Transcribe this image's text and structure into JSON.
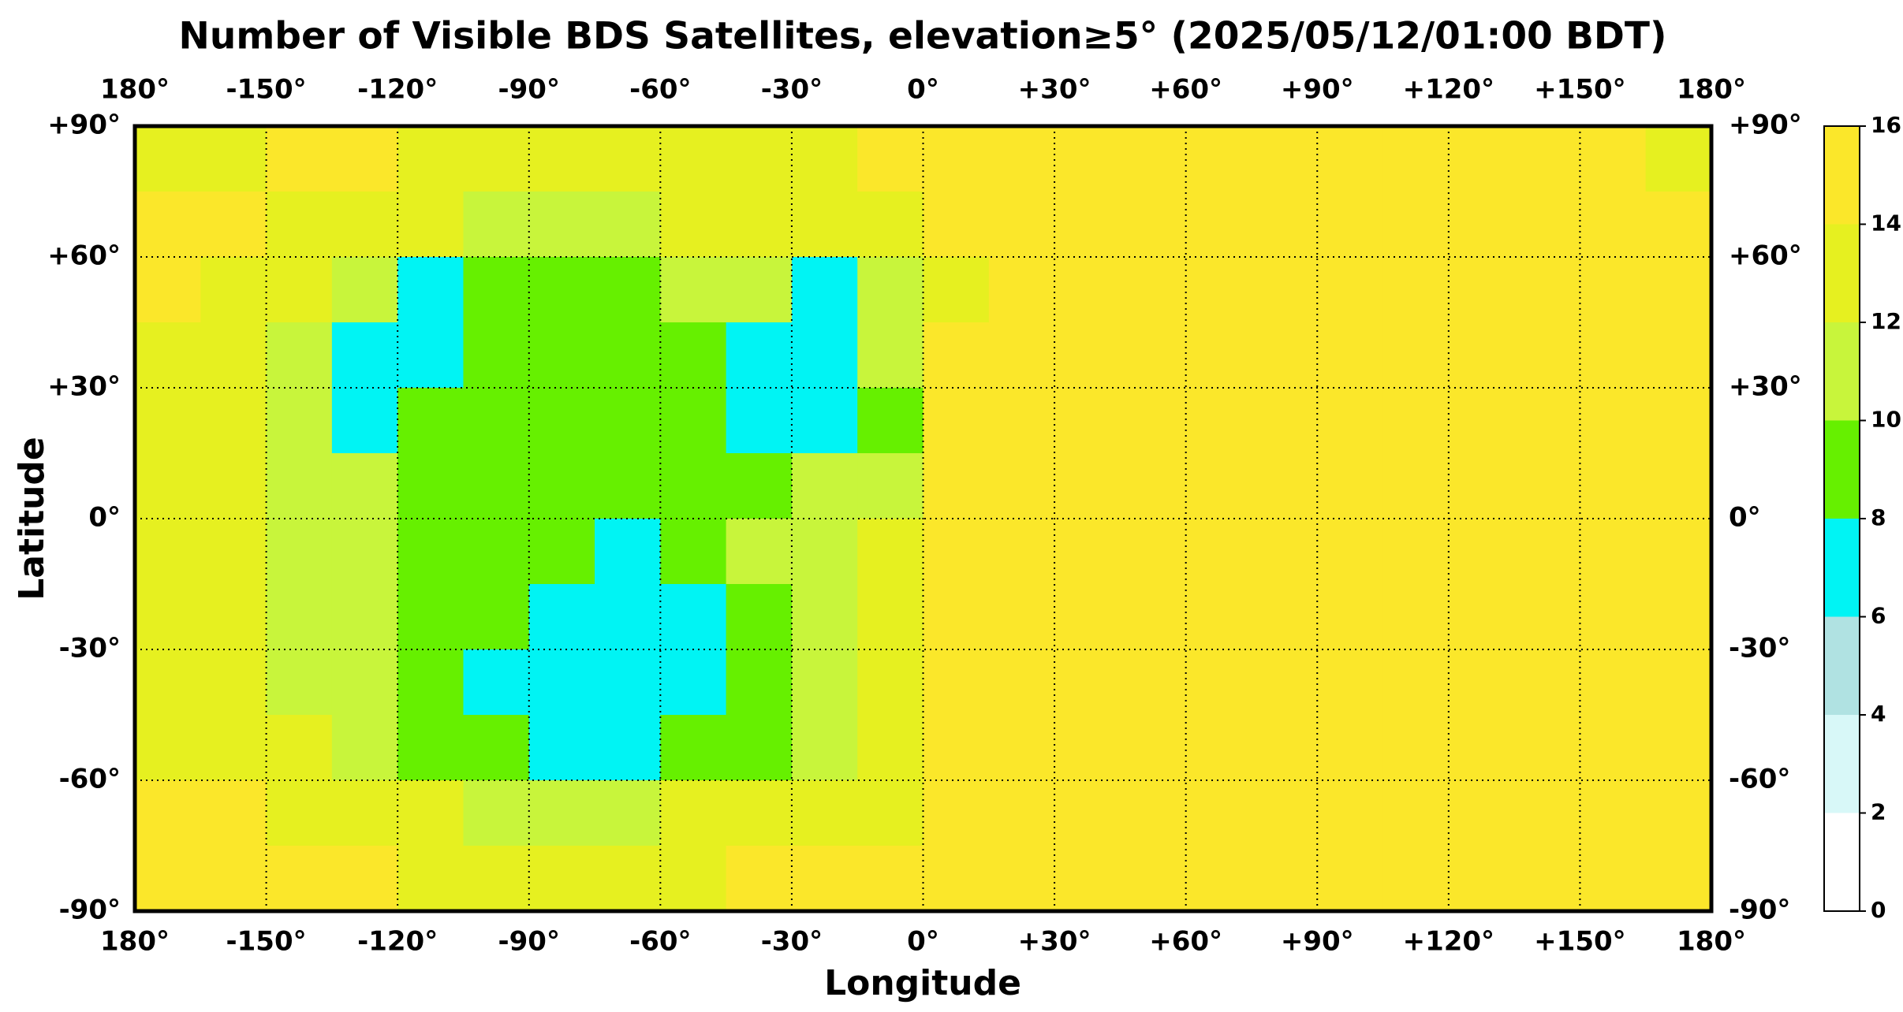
{
  "chart_data": {
    "type": "heatmap",
    "title": "Number of Visible BDS Satellites, elevation≥5° (2025/05/12/01:00 BDT)",
    "x_label": "Longitude",
    "y_label": "Latitude",
    "xlim": [
      -180,
      180
    ],
    "ylim": [
      -90,
      90
    ],
    "xticks": [
      {
        "value": -180,
        "label": "180°"
      },
      {
        "value": -150,
        "label": "-150°"
      },
      {
        "value": -120,
        "label": "-120°"
      },
      {
        "value": -90,
        "label": "-90°"
      },
      {
        "value": -60,
        "label": "-60°"
      },
      {
        "value": -30,
        "label": "-30°"
      },
      {
        "value": 0,
        "label": "0°"
      },
      {
        "value": 30,
        "label": "+30°"
      },
      {
        "value": 60,
        "label": "+60°"
      },
      {
        "value": 90,
        "label": "+90°"
      },
      {
        "value": 120,
        "label": "+120°"
      },
      {
        "value": 150,
        "label": "+150°"
      },
      {
        "value": 180,
        "label": "180°"
      }
    ],
    "yticks": [
      {
        "value": 90,
        "label": "+90°"
      },
      {
        "value": 60,
        "label": "+60°"
      },
      {
        "value": 30,
        "label": "+30°"
      },
      {
        "value": 0,
        "label": "0°"
      },
      {
        "value": -30,
        "label": "-30°"
      },
      {
        "value": -60,
        "label": "-60°"
      },
      {
        "value": -90,
        "label": "-90°"
      }
    ],
    "grid": true,
    "clim": [
      0,
      16
    ],
    "cticks": [
      0,
      2,
      4,
      6,
      8,
      10,
      12,
      14,
      16
    ],
    "colors": [
      "#ffffff",
      "#d8f8f8",
      "#b0e2e2",
      "#00f4f4",
      "#66f000",
      "#c8f53b",
      "#e6f020",
      "#fbe72a"
    ],
    "z": [
      [
        13,
        13,
        14,
        14,
        13,
        13,
        13,
        13,
        13,
        13,
        13,
        14,
        15,
        15,
        15,
        15,
        15,
        15,
        15,
        15,
        15,
        15,
        15,
        13
      ],
      [
        14,
        14,
        13,
        13,
        12,
        11,
        11,
        11,
        12,
        12,
        12,
        13,
        15,
        15,
        15,
        15,
        15,
        15,
        15,
        15,
        15,
        15,
        15,
        15
      ],
      [
        14,
        13,
        12,
        11,
        7,
        9,
        9,
        9,
        10,
        10,
        7,
        10,
        13,
        15,
        15,
        15,
        15,
        15,
        15,
        15,
        15,
        15,
        15,
        15
      ],
      [
        13,
        12,
        11,
        7,
        7,
        9,
        9,
        9,
        9,
        7,
        7,
        10,
        14,
        15,
        15,
        15,
        15,
        15,
        15,
        15,
        15,
        15,
        15,
        15
      ],
      [
        13,
        12,
        10,
        7,
        9,
        9,
        9,
        9,
        9,
        7,
        7,
        9,
        15,
        15,
        15,
        15,
        15,
        15,
        15,
        15,
        15,
        15,
        15,
        15
      ],
      [
        13,
        12,
        11,
        10,
        9,
        9,
        9,
        9,
        9,
        9,
        10,
        11,
        15,
        15,
        15,
        15,
        15,
        15,
        15,
        15,
        15,
        15,
        15,
        15
      ],
      [
        13,
        12,
        11,
        10,
        9,
        9,
        9,
        7,
        9,
        10,
        11,
        13,
        15,
        15,
        15,
        15,
        15,
        15,
        15,
        15,
        15,
        15,
        15,
        15
      ],
      [
        13,
        12,
        11,
        10,
        9,
        9,
        7,
        7,
        7,
        9,
        10,
        12,
        15,
        15,
        15,
        15,
        15,
        15,
        15,
        15,
        15,
        15,
        15,
        15
      ],
      [
        13,
        12,
        11,
        10,
        9,
        7,
        7,
        7,
        7,
        9,
        10,
        12,
        14,
        14,
        15,
        15,
        15,
        15,
        15,
        15,
        15,
        15,
        15,
        15
      ],
      [
        13,
        13,
        12,
        11,
        9,
        9,
        7,
        7,
        9,
        9,
        11,
        13,
        15,
        15,
        15,
        15,
        15,
        15,
        15,
        15,
        15,
        15,
        15,
        15
      ],
      [
        14,
        14,
        13,
        12,
        12,
        11,
        11,
        11,
        12,
        12,
        12,
        13,
        15,
        15,
        15,
        15,
        15,
        15,
        15,
        15,
        15,
        15,
        15,
        15
      ],
      [
        14,
        14,
        14,
        14,
        13,
        13,
        13,
        13,
        13,
        14,
        14,
        14,
        15,
        15,
        15,
        15,
        15,
        15,
        15,
        15,
        15,
        15,
        15,
        14
      ]
    ]
  }
}
